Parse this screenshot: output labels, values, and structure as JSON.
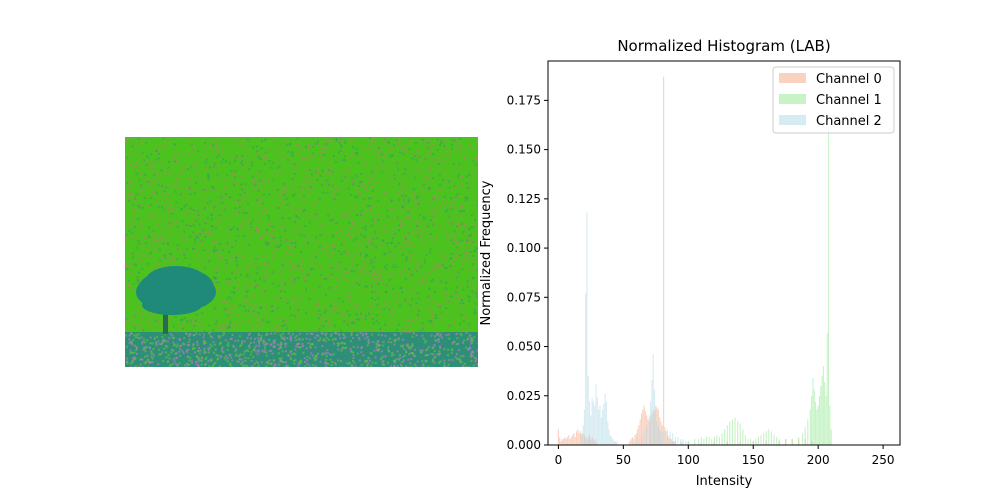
{
  "figure": {
    "image_panel": {
      "colors": {
        "sky_base": "#4cc21e",
        "sky_noise_a": "#c07a70",
        "sky_noise_b": "#2f9d6e",
        "ground_base": "#2e8f78",
        "ground_noise_a": "#b07ac0",
        "ground_noise_b": "#5fc03a",
        "tree": "#1f8a7a",
        "trunk": "#2a6a50"
      }
    }
  },
  "chart_data": {
    "type": "bar",
    "title": "Normalized Histogram (LAB)",
    "xlabel": "Intensity",
    "ylabel": "Normalized Frequency",
    "xlim": [
      -8,
      263
    ],
    "ylim": [
      0,
      0.195
    ],
    "xticks": [
      0,
      50,
      100,
      150,
      200,
      250
    ],
    "yticks": [
      0.0,
      0.025,
      0.05,
      0.075,
      0.1,
      0.125,
      0.15,
      0.175
    ],
    "ytick_labels": [
      "0.000",
      "0.025",
      "0.050",
      "0.075",
      "0.100",
      "0.125",
      "0.150",
      "0.175"
    ],
    "legend_position": "top-right",
    "series": [
      {
        "name": "Channel 0",
        "color": "#f4a582",
        "points": [
          [
            0,
            0.008
          ],
          [
            1,
            0.004
          ],
          [
            2,
            0.002
          ],
          [
            3,
            0.003
          ],
          [
            4,
            0.003
          ],
          [
            5,
            0.004
          ],
          [
            6,
            0.003
          ],
          [
            7,
            0.004
          ],
          [
            8,
            0.005
          ],
          [
            9,
            0.003
          ],
          [
            10,
            0.004
          ],
          [
            11,
            0.005
          ],
          [
            12,
            0.006
          ],
          [
            13,
            0.004
          ],
          [
            14,
            0.007
          ],
          [
            15,
            0.008
          ],
          [
            16,
            0.006
          ],
          [
            17,
            0.007
          ],
          [
            18,
            0.005
          ],
          [
            19,
            0.006
          ],
          [
            20,
            0.005
          ],
          [
            21,
            0.004
          ],
          [
            22,
            0.003
          ],
          [
            23,
            0.004
          ],
          [
            24,
            0.005
          ],
          [
            25,
            0.003
          ],
          [
            26,
            0.004
          ],
          [
            27,
            0.003
          ],
          [
            28,
            0.002
          ],
          [
            29,
            0.003
          ],
          [
            55,
            0.002
          ],
          [
            56,
            0.003
          ],
          [
            57,
            0.004
          ],
          [
            58,
            0.003
          ],
          [
            59,
            0.005
          ],
          [
            60,
            0.006
          ],
          [
            61,
            0.008
          ],
          [
            62,
            0.01
          ],
          [
            63,
            0.013
          ],
          [
            64,
            0.016
          ],
          [
            65,
            0.018
          ],
          [
            66,
            0.02
          ],
          [
            67,
            0.017
          ],
          [
            68,
            0.015
          ],
          [
            69,
            0.013
          ],
          [
            70,
            0.012
          ],
          [
            71,
            0.014
          ],
          [
            72,
            0.016
          ],
          [
            73,
            0.018
          ],
          [
            74,
            0.017
          ],
          [
            75,
            0.02
          ],
          [
            76,
            0.019
          ],
          [
            77,
            0.018
          ],
          [
            78,
            0.014
          ],
          [
            79,
            0.012
          ],
          [
            80,
            0.01
          ],
          [
            81,
            0.187
          ],
          [
            82,
            0.009
          ],
          [
            83,
            0.007
          ],
          [
            84,
            0.005
          ],
          [
            85,
            0.004
          ],
          [
            86,
            0.003
          ],
          [
            87,
            0.003
          ],
          [
            88,
            0.002
          ],
          [
            89,
            0.002
          ],
          [
            90,
            0.002
          ],
          [
            100,
            0.001
          ],
          [
            110,
            0.001
          ],
          [
            120,
            0.002
          ],
          [
            130,
            0.002
          ],
          [
            140,
            0.002
          ],
          [
            150,
            0.002
          ],
          [
            160,
            0.002
          ],
          [
            170,
            0.002
          ],
          [
            175,
            0.003
          ],
          [
            180,
            0.003
          ],
          [
            185,
            0.003
          ],
          [
            190,
            0.003
          ],
          [
            195,
            0.002
          ]
        ]
      },
      {
        "name": "Channel 1",
        "color": "#90e890",
        "points": [
          [
            95,
            0.002
          ],
          [
            100,
            0.002
          ],
          [
            105,
            0.003
          ],
          [
            108,
            0.003
          ],
          [
            110,
            0.004
          ],
          [
            112,
            0.003
          ],
          [
            114,
            0.004
          ],
          [
            116,
            0.004
          ],
          [
            118,
            0.003
          ],
          [
            120,
            0.004
          ],
          [
            122,
            0.005
          ],
          [
            124,
            0.004
          ],
          [
            126,
            0.006
          ],
          [
            128,
            0.008
          ],
          [
            130,
            0.01
          ],
          [
            132,
            0.012
          ],
          [
            134,
            0.013
          ],
          [
            136,
            0.014
          ],
          [
            138,
            0.012
          ],
          [
            140,
            0.011
          ],
          [
            142,
            0.008
          ],
          [
            144,
            0.005
          ],
          [
            146,
            0.003
          ],
          [
            148,
            0.003
          ],
          [
            150,
            0.002
          ],
          [
            152,
            0.003
          ],
          [
            154,
            0.004
          ],
          [
            156,
            0.005
          ],
          [
            158,
            0.006
          ],
          [
            160,
            0.007
          ],
          [
            162,
            0.008
          ],
          [
            164,
            0.007
          ],
          [
            166,
            0.005
          ],
          [
            168,
            0.004
          ],
          [
            170,
            0.003
          ],
          [
            175,
            0.003
          ],
          [
            180,
            0.003
          ],
          [
            185,
            0.004
          ],
          [
            188,
            0.006
          ],
          [
            190,
            0.009
          ],
          [
            192,
            0.013
          ],
          [
            194,
            0.018
          ],
          [
            195,
            0.025
          ],
          [
            196,
            0.034
          ],
          [
            197,
            0.028
          ],
          [
            198,
            0.022
          ],
          [
            199,
            0.018
          ],
          [
            200,
            0.02
          ],
          [
            201,
            0.025
          ],
          [
            202,
            0.03
          ],
          [
            203,
            0.035
          ],
          [
            204,
            0.04
          ],
          [
            205,
            0.032
          ],
          [
            206,
            0.025
          ],
          [
            207,
            0.057
          ],
          [
            208,
            0.162
          ],
          [
            209,
            0.02
          ],
          [
            210,
            0.008
          ]
        ]
      },
      {
        "name": "Channel 2",
        "color": "#add8e6",
        "points": [
          [
            18,
            0.006
          ],
          [
            19,
            0.01
          ],
          [
            20,
            0.018
          ],
          [
            21,
            0.077
          ],
          [
            22,
            0.118
          ],
          [
            23,
            0.035
          ],
          [
            24,
            0.022
          ],
          [
            25,
            0.015
          ],
          [
            26,
            0.024
          ],
          [
            27,
            0.022
          ],
          [
            28,
            0.02
          ],
          [
            29,
            0.031
          ],
          [
            30,
            0.024
          ],
          [
            31,
            0.018
          ],
          [
            32,
            0.02
          ],
          [
            33,
            0.014
          ],
          [
            34,
            0.018
          ],
          [
            35,
            0.021
          ],
          [
            36,
            0.026
          ],
          [
            37,
            0.022
          ],
          [
            38,
            0.012
          ],
          [
            39,
            0.008
          ],
          [
            40,
            0.005
          ],
          [
            41,
            0.004
          ],
          [
            42,
            0.003
          ],
          [
            43,
            0.002
          ],
          [
            44,
            0.002
          ],
          [
            45,
            0.002
          ],
          [
            60,
            0.002
          ],
          [
            62,
            0.003
          ],
          [
            64,
            0.004
          ],
          [
            66,
            0.007
          ],
          [
            68,
            0.01
          ],
          [
            70,
            0.015
          ],
          [
            71,
            0.022
          ],
          [
            72,
            0.033
          ],
          [
            73,
            0.046
          ],
          [
            74,
            0.028
          ],
          [
            75,
            0.018
          ],
          [
            76,
            0.012
          ],
          [
            77,
            0.01
          ],
          [
            78,
            0.008
          ],
          [
            79,
            0.007
          ],
          [
            80,
            0.006
          ],
          [
            82,
            0.007
          ],
          [
            84,
            0.008
          ],
          [
            86,
            0.007
          ],
          [
            88,
            0.006
          ],
          [
            90,
            0.004
          ],
          [
            92,
            0.004
          ],
          [
            94,
            0.003
          ],
          [
            96,
            0.003
          ],
          [
            98,
            0.002
          ],
          [
            100,
            0.002
          ]
        ]
      }
    ]
  }
}
